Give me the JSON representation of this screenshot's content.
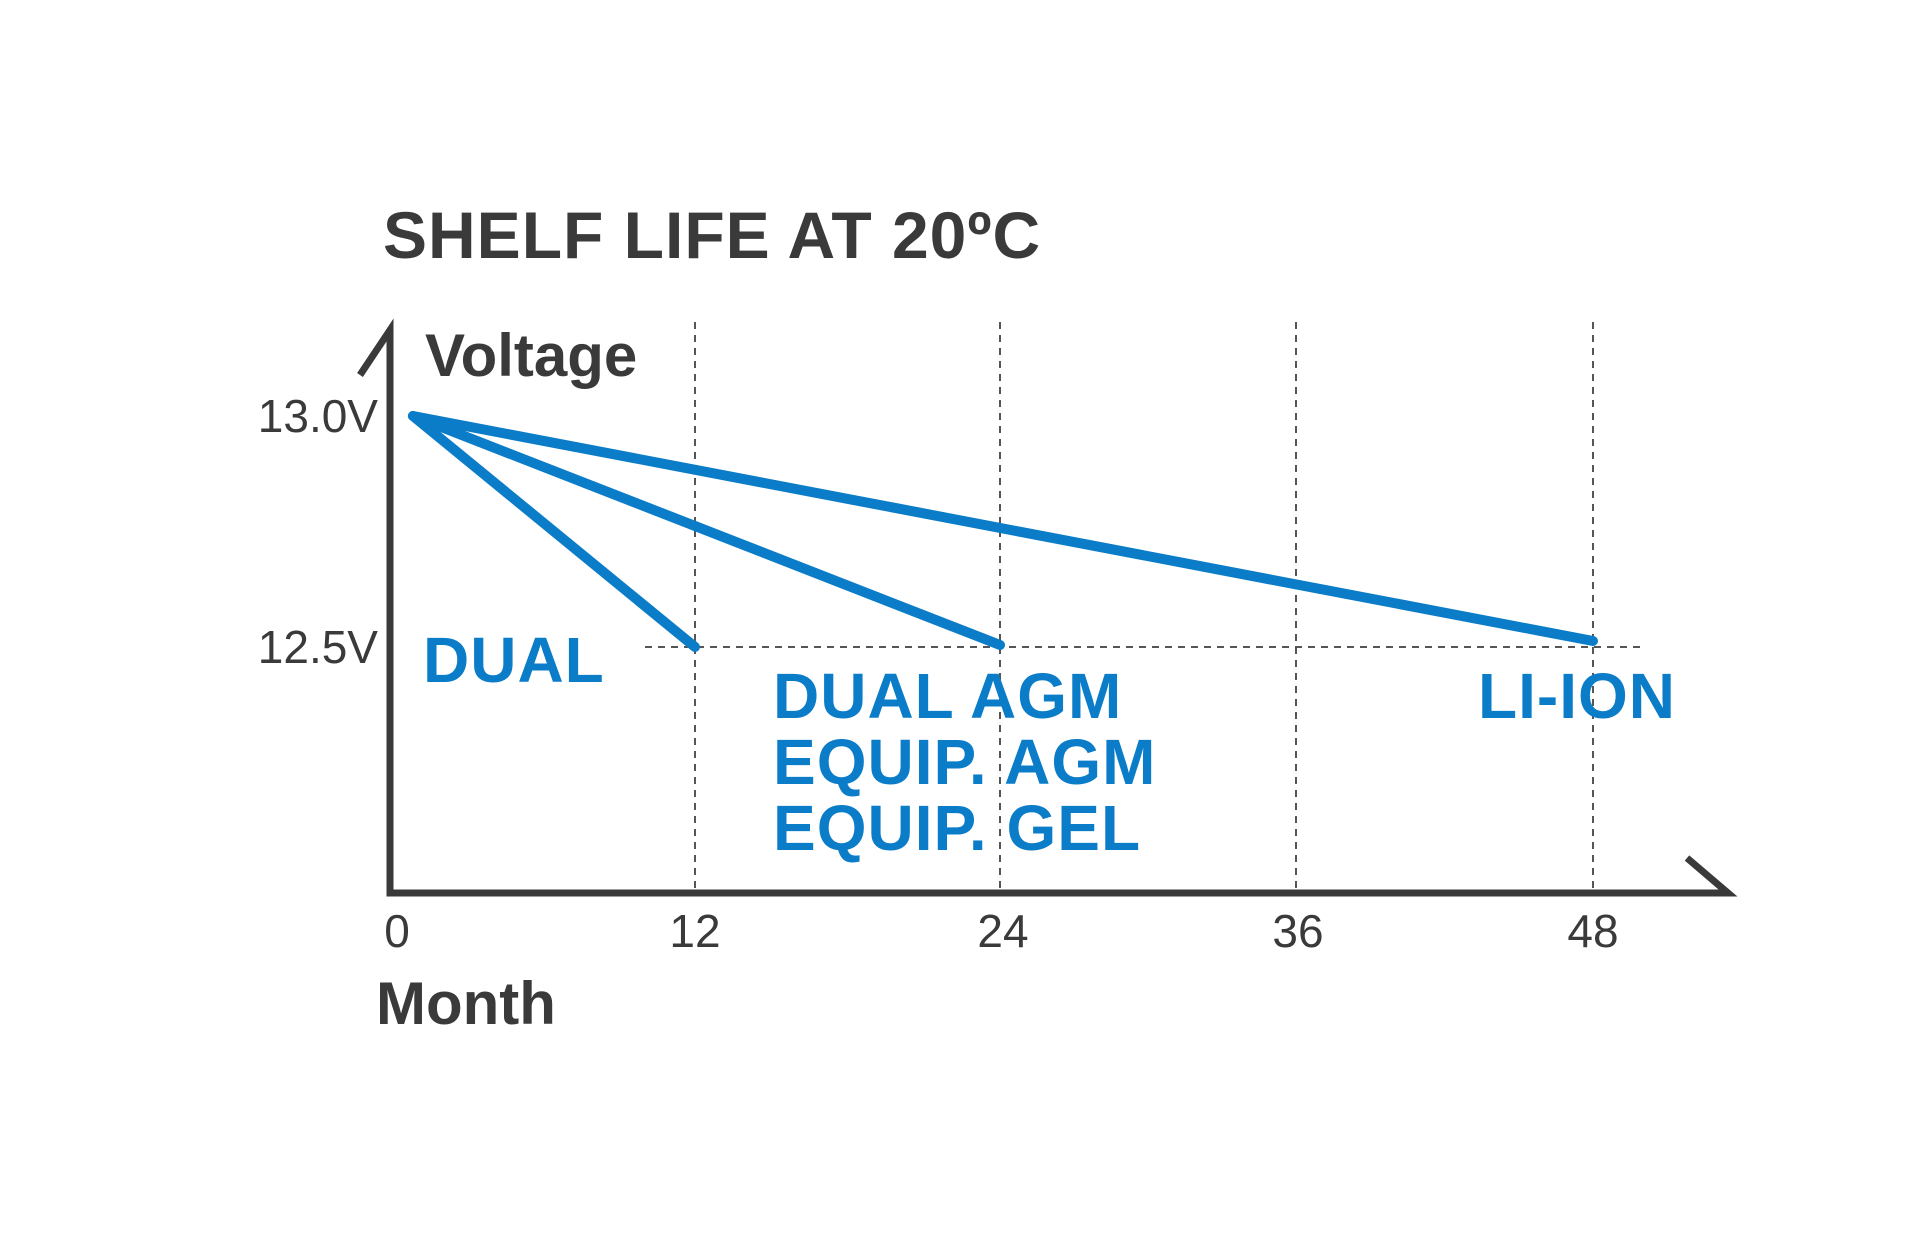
{
  "chart_data": {
    "type": "line",
    "title": "SHELF LIFE AT 20ºC",
    "xlabel": "Month",
    "ylabel": "Voltage",
    "x_ticks": [
      "0",
      "12",
      "24",
      "36",
      "48"
    ],
    "x_tick_values": [
      0,
      12,
      24,
      36,
      48
    ],
    "y_ticks": [
      "13.0V",
      "12.5V"
    ],
    "y_tick_values": [
      13.0,
      12.5
    ],
    "xlim": [
      0,
      54
    ],
    "ylim": [
      12.0,
      13.2
    ],
    "grid": "dashed vertical lines at ticks 12, 24, 36, 48; dashed horizontal line at 12.5V",
    "colors": {
      "series": "#0a7cc8",
      "axis": "#3a3a3a",
      "grid": "#555555",
      "text": "#3a3a3a"
    },
    "series": [
      {
        "name": "DUAL",
        "x": [
          0,
          12
        ],
        "y": [
          13.0,
          12.5
        ]
      },
      {
        "name": "DUAL AGM / EQUIP. AGM / EQUIP. GEL",
        "x": [
          0,
          24
        ],
        "y": [
          13.0,
          12.5
        ]
      },
      {
        "name": "LI-ION",
        "x": [
          0,
          48
        ],
        "y": [
          13.0,
          12.5
        ]
      }
    ],
    "annotations": [
      {
        "lines": [
          "DUAL"
        ],
        "series": 0
      },
      {
        "lines": [
          "DUAL AGM",
          "EQUIP. AGM",
          "EQUIP. GEL"
        ],
        "series": 1
      },
      {
        "lines": [
          "LI-ION"
        ],
        "series": 2
      }
    ]
  }
}
